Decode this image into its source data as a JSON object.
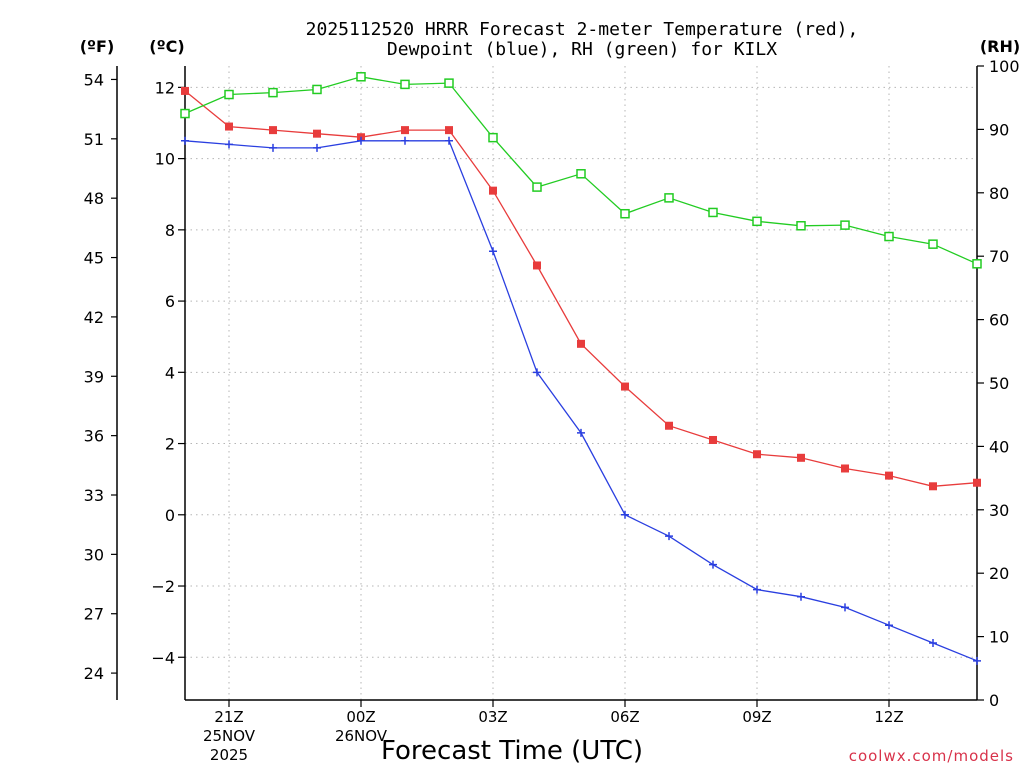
{
  "chart_data": {
    "type": "line",
    "title_line1": "2025112520 HRRR Forecast 2-meter Temperature (red),",
    "title_line2": "Dewpoint (blue), RH (green) for KILX",
    "xlabel": "Forecast Time (UTC)",
    "watermark": "coolwx.com/models",
    "unit_labels": {
      "fahrenheit": "(ºF)",
      "celsius": "(ºC)",
      "rh": "(RH)"
    },
    "x_hours": [
      20,
      21,
      22,
      23,
      24,
      25,
      26,
      27,
      28,
      29,
      30,
      31,
      32,
      33,
      34,
      35,
      36,
      37,
      38
    ],
    "x_range": [
      20,
      38
    ],
    "x_ticks": [
      {
        "hour": 21,
        "l1": "21Z",
        "l2": "25NOV",
        "l3": "2025"
      },
      {
        "hour": 24,
        "l1": "00Z",
        "l2": "26NOV",
        "l3": ""
      },
      {
        "hour": 27,
        "l1": "03Z",
        "l2": "",
        "l3": ""
      },
      {
        "hour": 30,
        "l1": "06Z",
        "l2": "",
        "l3": ""
      },
      {
        "hour": 33,
        "l1": "09Z",
        "l2": "",
        "l3": ""
      },
      {
        "hour": 36,
        "l1": "12Z",
        "l2": "",
        "l3": ""
      }
    ],
    "celsius_axis": {
      "range": [
        -5.2,
        12.6
      ],
      "ticks": [
        -4,
        -2,
        0,
        2,
        4,
        6,
        8,
        10,
        12
      ]
    },
    "celsius_tick_labels": [
      "−4",
      "−2",
      "0",
      "2",
      "4",
      "6",
      "8",
      "10",
      "12"
    ],
    "fahrenheit_ticks": [
      24,
      27,
      30,
      33,
      36,
      39,
      42,
      45,
      48,
      51,
      54
    ],
    "rh_axis": {
      "range": [
        0,
        100
      ],
      "ticks": [
        0,
        10,
        20,
        30,
        40,
        50,
        60,
        70,
        80,
        90,
        100
      ]
    },
    "grid": true,
    "series": [
      {
        "name": "Temperature",
        "unit": "C",
        "axis": "celsius",
        "color": "#e83c3c",
        "marker": "filled-square",
        "values": [
          11.9,
          10.9,
          10.8,
          10.7,
          10.6,
          10.8,
          10.8,
          9.1,
          7.0,
          4.8,
          3.6,
          2.5,
          2.1,
          1.7,
          1.6,
          1.3,
          1.1,
          0.8,
          0.9
        ]
      },
      {
        "name": "Dewpoint",
        "unit": "C",
        "axis": "celsius",
        "color": "#2a3fe0",
        "marker": "plus",
        "values": [
          10.5,
          10.4,
          10.3,
          10.3,
          10.5,
          10.5,
          10.5,
          7.4,
          4.0,
          2.3,
          0.0,
          -0.6,
          -1.4,
          -2.1,
          -2.3,
          -2.6,
          -3.1,
          -3.6,
          -4.1
        ]
      },
      {
        "name": "RH",
        "unit": "%",
        "axis": "rh",
        "color": "#22cc22",
        "marker": "open-square",
        "values": [
          92.5,
          95.5,
          95.8,
          96.3,
          98.3,
          97.1,
          97.3,
          88.7,
          80.9,
          83.0,
          76.7,
          79.2,
          76.9,
          75.5,
          74.8,
          74.9,
          73.1,
          71.9,
          68.8
        ]
      }
    ]
  }
}
